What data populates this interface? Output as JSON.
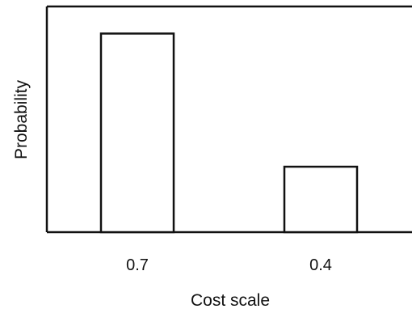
{
  "chart_data": {
    "type": "bar",
    "title": "",
    "xlabel": "Cost scale",
    "ylabel": "Probability",
    "categories": [
      "0.7",
      "0.4"
    ],
    "values": [
      0.88,
      0.29
    ],
    "ylim": [
      0,
      1
    ],
    "grid": false,
    "legend": "none",
    "y_tick_labels": false,
    "bar_fill": "#ffffff",
    "bar_stroke": "#111111",
    "axis_color": "#111111"
  }
}
